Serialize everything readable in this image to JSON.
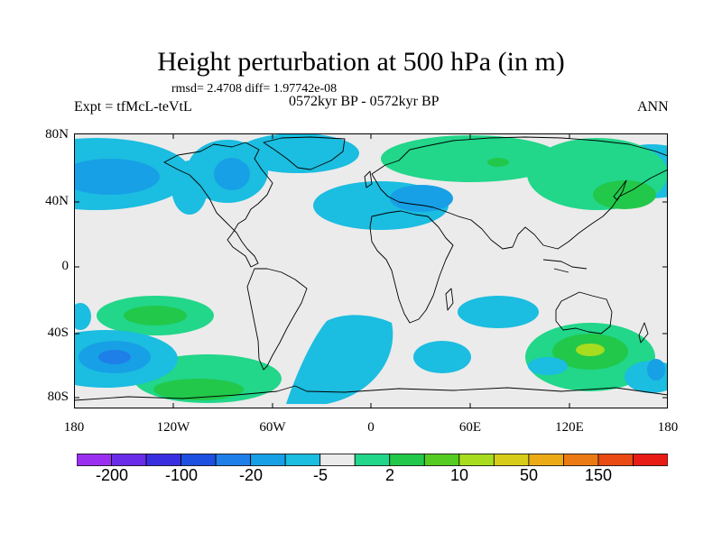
{
  "title": "Height perturbation at 500 hPa (in m)",
  "stats": "rmsd= 2.4708 diff= 1.97742e-08",
  "experiment": "Expt = tfMcL-teVtL",
  "period": "0572kyr BP - 0572kyr BP",
  "season": "ANN",
  "axes": {
    "y_labels": [
      "80N",
      "40N",
      "0",
      "40S",
      "80S"
    ],
    "x_labels": [
      "180",
      "120W",
      "60W",
      "0",
      "60E",
      "120E",
      "180"
    ]
  },
  "colorbar": {
    "labels": [
      "-200",
      "-100",
      "-20",
      "-5",
      "2",
      "10",
      "50",
      "150"
    ],
    "colors": [
      "#9a2ff0",
      "#6a2ce8",
      "#3a2fe0",
      "#1d4fe0",
      "#1e7fe8",
      "#17a0e6",
      "#1bbde0",
      "#ebebeb",
      "#22d68a",
      "#22c84a",
      "#55cc22",
      "#a8dc1e",
      "#d8cc1a",
      "#ecaa16",
      "#ec7a14",
      "#ea4a14",
      "#e81c14"
    ]
  },
  "colors": {
    "land_outline": "#000000",
    "neutral": "#ebebeb",
    "light_blue": "#1bbde0",
    "medium_blue": "#17a0e6",
    "blue": "#1e7fe8",
    "teal": "#22d68a",
    "green": "#22c84a",
    "lime": "#a8dc1e"
  }
}
